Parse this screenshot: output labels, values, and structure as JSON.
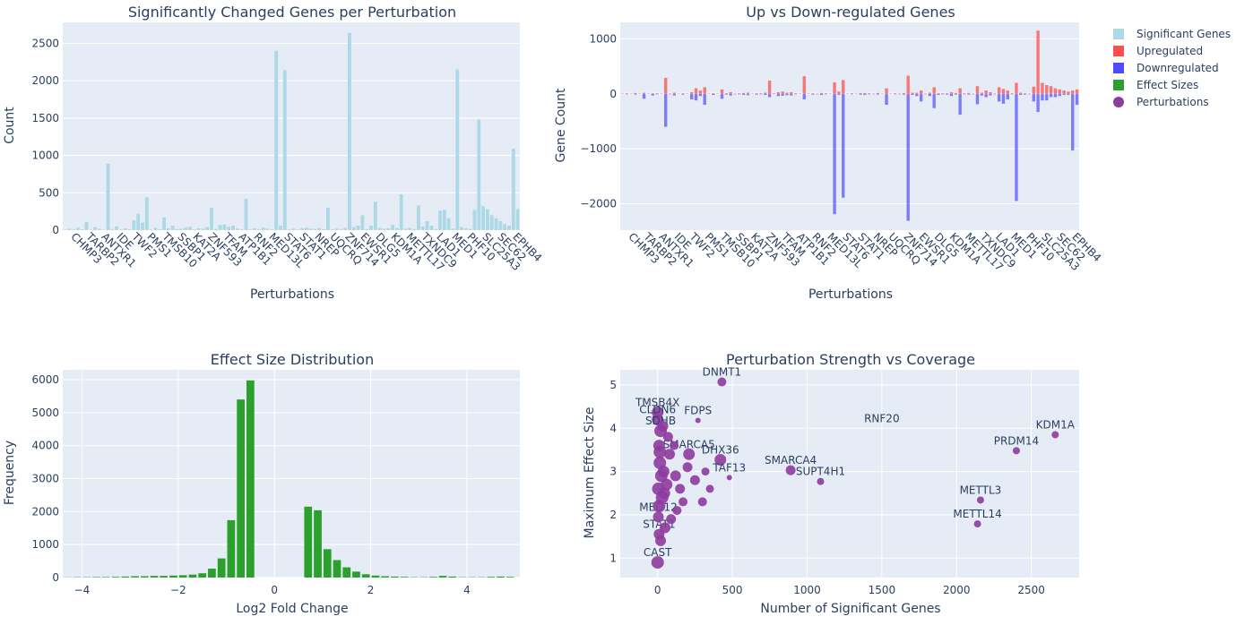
{
  "colors": {
    "plot_bg": "#e5ecf6",
    "grid": "#ffffff",
    "significant": "#add8e6",
    "up": "#ff4d4d",
    "down": "#4d4dff",
    "effect": "#2ca02c",
    "perturbation": "#8e3b9f",
    "text": "#2a3f5f"
  },
  "legend": [
    {
      "name": "Significant Genes",
      "icon": "square",
      "color": "#add8e6"
    },
    {
      "name": "Upregulated",
      "icon": "square",
      "color": "#ff4d4d"
    },
    {
      "name": "Downregulated",
      "icon": "square",
      "color": "#4d4dff"
    },
    {
      "name": "Effect Sizes",
      "icon": "square",
      "color": "#2ca02c"
    },
    {
      "name": "Perturbations",
      "icon": "circle",
      "color": "#8e3b9f"
    }
  ],
  "chart_data": [
    {
      "type": "bar",
      "title": "Significantly Changed Genes per Perturbation",
      "xlabel": "Perturbations",
      "ylabel": "Count",
      "ylim": [
        0,
        2780
      ],
      "yticks": [
        0,
        500,
        1000,
        1500,
        2000,
        2500
      ],
      "tick_labels": [
        "CHMP3",
        "TARBP2",
        "ANTXR1",
        "IDE",
        "TWF2",
        "PMS1",
        "TMSB10",
        "SSBP1",
        "KAT2A",
        "ZNF593",
        "TFAM",
        "ATP1B1",
        "RNF2",
        "MED13L",
        "STAT6",
        "STAT1",
        "NREP",
        "UQCRQ",
        "ZNF714",
        "EWSR1",
        "DLG5",
        "KDM1A",
        "METTL17",
        "TXNDC9",
        "LAD1",
        "MED1",
        "PHF10",
        "SLC25A3",
        "SEC62",
        "EPHB4"
      ],
      "series": [
        {
          "values": [
            5,
            18,
            8,
            30,
            12,
            110,
            5,
            40,
            20,
            6,
            890,
            15,
            50,
            8,
            25,
            10,
            130,
            220,
            100,
            440,
            6,
            30,
            12,
            170,
            25,
            60,
            15,
            20,
            35,
            45,
            8,
            25,
            20,
            40,
            300,
            15,
            70,
            75,
            45,
            60,
            20,
            10,
            420,
            8,
            25,
            15,
            35,
            20,
            10,
            2400,
            60,
            2140,
            10,
            20,
            8,
            30,
            35,
            20,
            15,
            30,
            12,
            300,
            10,
            20,
            15,
            30,
            2640,
            40,
            60,
            200,
            15,
            60,
            380,
            30,
            20,
            25,
            70,
            30,
            480,
            20,
            30,
            15,
            330,
            50,
            120,
            60,
            15,
            260,
            270,
            160,
            20,
            2150,
            40,
            25,
            15,
            270,
            1480,
            320,
            280,
            200,
            160,
            120,
            80,
            60,
            1090,
            280
          ]
        }
      ]
    },
    {
      "type": "bar",
      "title": "Up vs Down-regulated Genes",
      "xlabel": "Perturbations",
      "ylabel": "Gene Count",
      "ylim": [
        -2480,
        1300
      ],
      "yticks": [
        -2000,
        -1000,
        0,
        1000
      ],
      "tick_labels": [
        "CHMP3",
        "TARBP2",
        "ANTXR1",
        "IDE",
        "TWF2",
        "PMS1",
        "TMSB10",
        "SSBP1",
        "KAT2A",
        "ZNF593",
        "TFAM",
        "ATP1B1",
        "RNF2",
        "MED13L",
        "STAT6",
        "STAT1",
        "NREP",
        "UQCRQ",
        "ZNF714",
        "EWSR1",
        "DLG5",
        "KDM1A",
        "METTL17",
        "TXNDC9",
        "LAD1",
        "MED1",
        "PHF10",
        "SLC25A3",
        "SEC62",
        "EPHB4"
      ],
      "series": [
        {
          "name": "Upregulated",
          "values": [
            5,
            10,
            5,
            15,
            5,
            20,
            5,
            10,
            10,
            5,
            290,
            5,
            20,
            5,
            10,
            5,
            30,
            100,
            60,
            120,
            5,
            10,
            5,
            80,
            10,
            30,
            5,
            10,
            15,
            20,
            5,
            10,
            10,
            20,
            240,
            10,
            30,
            40,
            20,
            30,
            10,
            5,
            320,
            5,
            10,
            5,
            15,
            10,
            5,
            210,
            40,
            250,
            5,
            10,
            5,
            15,
            15,
            10,
            5,
            15,
            5,
            100,
            5,
            10,
            5,
            15,
            330,
            20,
            20,
            60,
            5,
            20,
            120,
            10,
            10,
            10,
            30,
            15,
            100,
            10,
            15,
            5,
            140,
            20,
            60,
            30,
            5,
            120,
            90,
            60,
            10,
            200,
            20,
            10,
            5,
            130,
            1150,
            200,
            160,
            140,
            100,
            80,
            60,
            40,
            60,
            80
          ]
        },
        {
          "name": "Downregulated",
          "values": [
            -5,
            -10,
            -5,
            -15,
            -5,
            -90,
            -5,
            -30,
            -10,
            -5,
            -600,
            -10,
            -30,
            -5,
            -15,
            -5,
            -100,
            -120,
            -40,
            -200,
            -5,
            -20,
            -5,
            -90,
            -15,
            -30,
            -10,
            -10,
            -20,
            -25,
            -5,
            -15,
            -10,
            -20,
            -60,
            -5,
            -40,
            -35,
            -25,
            -30,
            -10,
            -5,
            -100,
            -5,
            -15,
            -10,
            -20,
            -10,
            -5,
            -2190,
            -20,
            -1890,
            -5,
            -10,
            -5,
            -15,
            -20,
            -10,
            -10,
            -15,
            -5,
            -200,
            -5,
            -10,
            -10,
            -15,
            -2310,
            -20,
            -40,
            -140,
            -10,
            -40,
            -260,
            -20,
            -10,
            -15,
            -40,
            -15,
            -380,
            -10,
            -15,
            -10,
            -190,
            -30,
            -60,
            -30,
            -10,
            -140,
            -180,
            -100,
            -10,
            -1950,
            -20,
            -15,
            -10,
            -140,
            -330,
            -120,
            -120,
            -60,
            -60,
            -40,
            -20,
            -20,
            -1030,
            -200
          ]
        }
      ]
    },
    {
      "type": "bar",
      "title": "Effect Size Distribution",
      "xlabel": "Log2 Fold Change",
      "ylabel": "Frequency",
      "xlim": [
        -4.4,
        5.1
      ],
      "ylim": [
        0,
        6300
      ],
      "xticks": [
        -4,
        -2,
        0,
        2,
        4
      ],
      "yticks": [
        0,
        1000,
        2000,
        3000,
        4000,
        5000,
        6000
      ],
      "bin_start": -4.4,
      "bin_width": 0.2,
      "values": [
        5,
        10,
        10,
        15,
        15,
        20,
        30,
        40,
        40,
        50,
        50,
        60,
        70,
        90,
        130,
        270,
        580,
        1740,
        5400,
        5980,
        0,
        0,
        0,
        0,
        0,
        2150,
        2040,
        860,
        530,
        310,
        180,
        100,
        60,
        40,
        30,
        20,
        10,
        10,
        20,
        50,
        30,
        10,
        10,
        10,
        20,
        30,
        20
      ]
    },
    {
      "type": "scatter",
      "title": "Perturbation Strength vs Coverage",
      "xlabel": "Number of Significant Genes",
      "ylabel": "Maximum Effect Size",
      "xlim": [
        -250,
        2820
      ],
      "ylim": [
        0.55,
        5.35
      ],
      "xticks": [
        0,
        500,
        1000,
        1500,
        2000,
        2500
      ],
      "yticks": [
        1,
        2,
        3,
        4,
        5
      ],
      "points": [
        {
          "x": 430,
          "y": 5.07,
          "label": "DNMT1",
          "size": 8
        },
        {
          "x": 2660,
          "y": 3.85,
          "label": "KDM1A",
          "size": 6
        },
        {
          "x": 2400,
          "y": 3.48,
          "label": "PRDM14",
          "size": 6
        },
        {
          "x": 890,
          "y": 3.03,
          "label": "SMARCA4",
          "size": 9
        },
        {
          "x": 1090,
          "y": 2.77,
          "label": "SUPT4H1",
          "size": 6
        },
        {
          "x": 2160,
          "y": 2.34,
          "label": "METTL3",
          "size": 6
        },
        {
          "x": 2140,
          "y": 1.79,
          "label": "METTL14",
          "size": 6
        },
        {
          "x": 1500,
          "y": 4.0,
          "label": "RNF20",
          "size": 0
        },
        {
          "x": 0,
          "y": 0.9,
          "label": "CAST",
          "size": 12
        },
        {
          "x": 0,
          "y": 4.37,
          "label": "TMSB4X",
          "size": 11
        },
        {
          "x": 0,
          "y": 4.2,
          "label": "CLDN6",
          "size": 11
        },
        {
          "x": 270,
          "y": 4.18,
          "label": "FDPS",
          "size": 4
        },
        {
          "x": 20,
          "y": 3.94,
          "label": "SDHB",
          "size": 12
        },
        {
          "x": 210,
          "y": 3.4,
          "label": "SMARCA5",
          "size": 11
        },
        {
          "x": 420,
          "y": 3.27,
          "label": "DHX36",
          "size": 11
        },
        {
          "x": 480,
          "y": 2.86,
          "label": "TAF13",
          "size": 4
        },
        {
          "x": 300,
          "y": 2.3,
          "label": "",
          "size": 8
        },
        {
          "x": 10,
          "y": 1.55,
          "label": "STAT1",
          "size": 10
        },
        {
          "x": 5,
          "y": 1.95,
          "label": "MED12",
          "size": 10
        },
        {
          "x": 10,
          "y": 3.6,
          "label": "",
          "size": 11
        },
        {
          "x": 15,
          "y": 3.2,
          "label": "",
          "size": 12
        },
        {
          "x": 25,
          "y": 2.9,
          "label": "",
          "size": 12
        },
        {
          "x": 5,
          "y": 2.6,
          "label": "",
          "size": 12
        },
        {
          "x": 30,
          "y": 2.4,
          "label": "",
          "size": 12
        },
        {
          "x": 10,
          "y": 2.2,
          "label": "",
          "size": 12
        },
        {
          "x": 40,
          "y": 3.0,
          "label": "",
          "size": 11
        },
        {
          "x": 60,
          "y": 2.7,
          "label": "",
          "size": 11
        },
        {
          "x": 80,
          "y": 3.4,
          "label": "",
          "size": 10
        },
        {
          "x": 120,
          "y": 2.9,
          "label": "",
          "size": 10
        },
        {
          "x": 150,
          "y": 2.6,
          "label": "",
          "size": 9
        },
        {
          "x": 200,
          "y": 3.1,
          "label": "",
          "size": 9
        },
        {
          "x": 250,
          "y": 2.8,
          "label": "",
          "size": 9
        },
        {
          "x": 170,
          "y": 2.3,
          "label": "",
          "size": 8
        },
        {
          "x": 90,
          "y": 1.9,
          "label": "",
          "size": 9
        },
        {
          "x": 50,
          "y": 1.7,
          "label": "",
          "size": 10
        },
        {
          "x": 20,
          "y": 1.4,
          "label": "",
          "size": 10
        },
        {
          "x": 70,
          "y": 3.8,
          "label": "",
          "size": 9
        },
        {
          "x": 110,
          "y": 3.6,
          "label": "",
          "size": 8
        },
        {
          "x": 35,
          "y": 4.05,
          "label": "",
          "size": 10
        },
        {
          "x": 130,
          "y": 2.1,
          "label": "",
          "size": 8
        },
        {
          "x": 350,
          "y": 2.6,
          "label": "",
          "size": 7
        },
        {
          "x": 320,
          "y": 3.0,
          "label": "",
          "size": 7
        },
        {
          "x": 15,
          "y": 3.45,
          "label": "",
          "size": 12
        },
        {
          "x": 45,
          "y": 2.5,
          "label": "",
          "size": 11
        }
      ]
    }
  ]
}
